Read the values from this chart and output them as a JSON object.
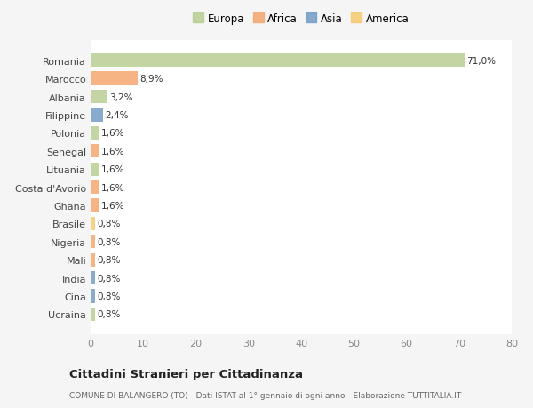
{
  "categories": [
    "Ucraina",
    "Cina",
    "India",
    "Mali",
    "Nigeria",
    "Brasile",
    "Ghana",
    "Costa d'Avorio",
    "Lituania",
    "Senegal",
    "Polonia",
    "Filippine",
    "Albania",
    "Marocco",
    "Romania"
  ],
  "values": [
    0.8,
    0.8,
    0.8,
    0.8,
    0.8,
    0.8,
    1.6,
    1.6,
    1.6,
    1.6,
    1.6,
    2.4,
    3.2,
    8.9,
    71.0
  ],
  "labels": [
    "0,8%",
    "0,8%",
    "0,8%",
    "0,8%",
    "0,8%",
    "0,8%",
    "1,6%",
    "1,6%",
    "1,6%",
    "1,6%",
    "1,6%",
    "2,4%",
    "3,2%",
    "8,9%",
    "71,0%"
  ],
  "colors": [
    "#b5cc8e",
    "#6e99c4",
    "#6e99c4",
    "#f4a46a",
    "#f4a46a",
    "#f5c96a",
    "#f4a46a",
    "#f4a46a",
    "#b5cc8e",
    "#f4a46a",
    "#b5cc8e",
    "#6e99c4",
    "#b5cc8e",
    "#f4a46a",
    "#b5cc8e"
  ],
  "legend_labels": [
    "Europa",
    "Africa",
    "Asia",
    "America"
  ],
  "legend_colors": [
    "#b5cc8e",
    "#f4a46a",
    "#6e99c4",
    "#f5c96a"
  ],
  "title": "Cittadini Stranieri per Cittadinanza",
  "subtitle": "COMUNE DI BALANGERO (TO) - Dati ISTAT al 1° gennaio di ogni anno - Elaborazione TUTTITALIA.IT",
  "xlim": [
    0,
    80
  ],
  "xticks": [
    0,
    10,
    20,
    30,
    40,
    50,
    60,
    70,
    80
  ],
  "plot_bg": "#ffffff",
  "fig_bg": "#f5f5f5",
  "grid_color": "#e8e8e8",
  "bar_alpha": 0.82
}
